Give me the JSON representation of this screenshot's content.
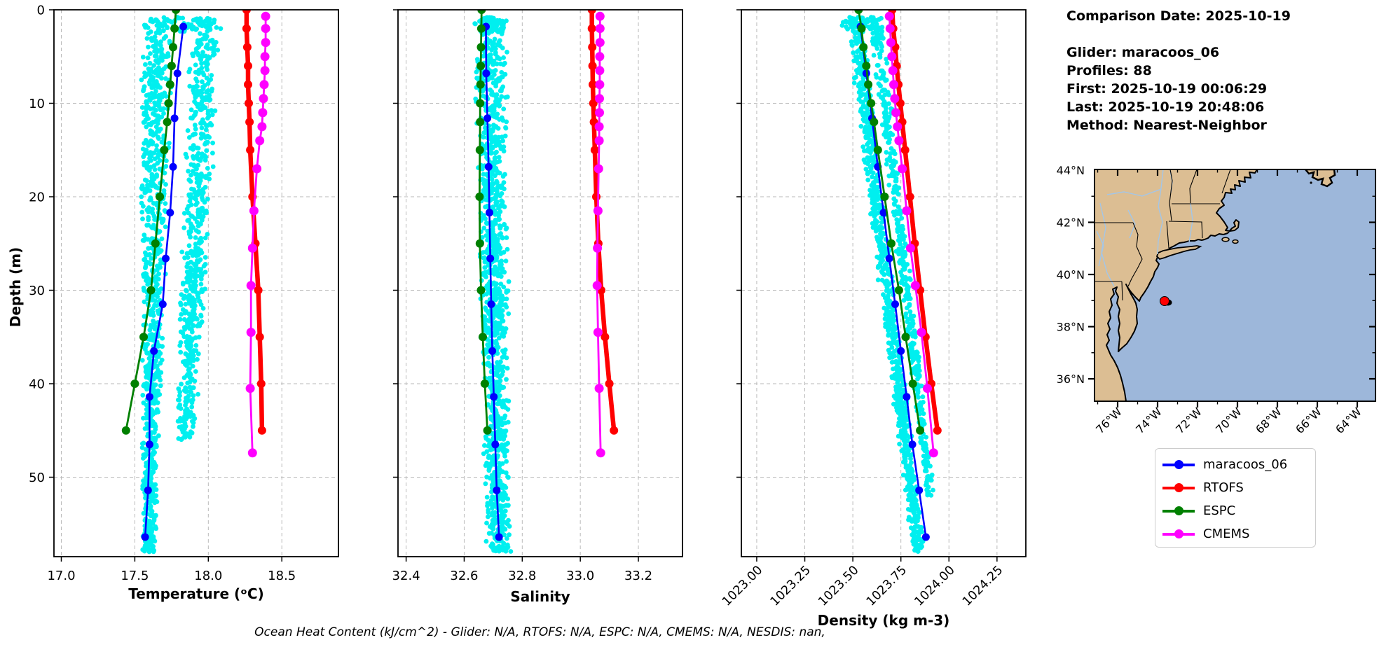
{
  "header": {
    "comparison_date": "Comparison Date: 2025-10-19",
    "glider": "Glider: maracoos_06",
    "profiles": "Profiles: 88",
    "first": "First: 2025-10-19 00:06:29",
    "last": "Last: 2025-10-19 20:48:06",
    "method": "Method: Nearest-Neighbor"
  },
  "caption": "Ocean Heat Content (kJ/cm^2) - Glider: N/A,  RTOFS: N/A,  ESPC: N/A,  CMEMS: N/A,  NESDIS: nan,",
  "legend": {
    "items": [
      {
        "label": "maracoos_06",
        "color": "#0000ff"
      },
      {
        "label": "RTOFS",
        "color": "#ff0000"
      },
      {
        "label": "ESPC",
        "color": "#008000"
      },
      {
        "label": "CMEMS",
        "color": "#ff00ff"
      }
    ]
  },
  "map": {
    "lat_tick_labels": [
      "44°N",
      "42°N",
      "40°N",
      "38°N",
      "36°N"
    ],
    "lon_tick_labels": [
      "76°W",
      "74°W",
      "72°W",
      "70°W",
      "68°W",
      "66°W",
      "64°W"
    ],
    "marker": {
      "lon_w": 73.6,
      "lat_n": 38.95,
      "color": "#ff0000"
    },
    "land_color": "#dcbe93",
    "ocean_color": "#9db7da",
    "river_color": "#a3c6e8",
    "foreign_land_color": "#b3b3b3"
  },
  "chart_data": [
    {
      "type": "scatter",
      "title": "",
      "xlabel": "Temperature (ᵒC)",
      "ylabel": "Depth (m)",
      "xlim": [
        16.95,
        18.885
      ],
      "ylim": [
        0,
        58.5
      ],
      "y_inverted": true,
      "grid": true,
      "xticks": [
        17.0,
        17.5,
        18.0,
        18.5
      ],
      "xtick_labels": [
        "17.0",
        "17.5",
        "18.0",
        "18.5"
      ],
      "rotate_xtick_labels": false,
      "ytick_values": [
        0,
        10,
        20,
        30,
        40,
        50
      ],
      "ytick_labels": [
        "0",
        "10",
        "20",
        "30",
        "40",
        "50"
      ],
      "series": [
        {
          "name": "maracoos_06",
          "color": "#0000ff",
          "lw": 2.6,
          "marker_r": 5.5,
          "depths": [
            1.8,
            6.8,
            11.6,
            16.8,
            21.7,
            26.6,
            31.5,
            36.5,
            41.4,
            46.5,
            51.4,
            56.4
          ],
          "values": [
            17.83,
            17.79,
            17.77,
            17.76,
            17.74,
            17.71,
            17.69,
            17.63,
            17.6,
            17.6,
            17.59,
            17.57
          ]
        },
        {
          "name": "RTOFS",
          "color": "#ff0000",
          "lw": 6.5,
          "marker_r": 6,
          "depths": [
            0,
            2,
            4,
            6,
            8,
            10,
            12,
            15,
            20,
            25,
            30,
            35,
            40,
            45
          ],
          "values": [
            18.26,
            18.26,
            18.265,
            18.27,
            18.27,
            18.275,
            18.28,
            18.285,
            18.3,
            18.32,
            18.34,
            18.35,
            18.36,
            18.365
          ]
        },
        {
          "name": "ESPC",
          "color": "#008000",
          "lw": 2.8,
          "marker_r": 6,
          "depths": [
            0,
            2,
            4,
            6,
            8,
            10,
            12,
            15,
            20,
            25,
            30,
            35,
            40,
            45
          ],
          "values": [
            17.78,
            17.77,
            17.76,
            17.75,
            17.74,
            17.73,
            17.72,
            17.7,
            17.67,
            17.64,
            17.61,
            17.56,
            17.5,
            17.44
          ]
        },
        {
          "name": "CMEMS",
          "color": "#ff00ff",
          "lw": 2.8,
          "marker_r": 6.5,
          "depths": [
            0.7,
            2,
            3.5,
            5,
            6.5,
            8,
            9.5,
            11,
            12.5,
            14,
            17,
            21.5,
            25.5,
            29.5,
            34.5,
            40.5,
            47.4
          ],
          "values": [
            18.39,
            18.39,
            18.39,
            18.385,
            18.385,
            18.38,
            18.375,
            18.37,
            18.365,
            18.35,
            18.33,
            18.31,
            18.3,
            18.29,
            18.29,
            18.285,
            18.3
          ]
        }
      ],
      "glider_scatter": {
        "color": "#00efef",
        "dot_r": 3.4,
        "bands": [
          {
            "count": 900,
            "dmin": 0.8,
            "dmax": 58,
            "c0": 17.65,
            "cslope": -0.0009,
            "h0": 0.125,
            "hslope": -0.0013,
            "hmin": 0.045
          },
          {
            "count": 620,
            "dmin": 0.8,
            "dmax": 46,
            "c0": 17.99,
            "cslope": -0.0032,
            "h0": 0.115,
            "hslope": -0.0008,
            "hmin": 0.05
          },
          {
            "count": 55,
            "dmin": 0.8,
            "dmax": 2.4,
            "c0": 17.84,
            "cslope": 0,
            "h0": 0.27,
            "hslope": 0,
            "hmin": 0.05
          }
        ]
      }
    },
    {
      "type": "scatter",
      "title": "",
      "xlabel": "Salinity",
      "xlim": [
        32.372,
        33.352
      ],
      "ylim": [
        0,
        58.5
      ],
      "y_inverted": true,
      "grid": true,
      "xticks": [
        32.4,
        32.6,
        32.8,
        33.0,
        33.2
      ],
      "xtick_labels": [
        "32.4",
        "32.6",
        "32.8",
        "33.0",
        "33.2"
      ],
      "rotate_xtick_labels": false,
      "series": [
        {
          "name": "maracoos_06",
          "color": "#0000ff",
          "lw": 2.6,
          "marker_r": 5.5,
          "depths": [
            1.8,
            6.8,
            11.6,
            16.8,
            21.7,
            26.6,
            31.5,
            36.5,
            41.4,
            46.5,
            51.4,
            56.4
          ],
          "values": [
            32.675,
            32.676,
            32.68,
            32.684,
            32.687,
            32.69,
            32.693,
            32.697,
            32.702,
            32.707,
            32.712,
            32.72
          ]
        },
        {
          "name": "RTOFS",
          "color": "#ff0000",
          "lw": 6.5,
          "marker_r": 6,
          "depths": [
            0,
            2,
            4,
            6,
            8,
            10,
            12,
            15,
            20,
            25,
            30,
            35,
            40,
            45
          ],
          "values": [
            33.04,
            33.04,
            33.041,
            33.042,
            33.043,
            33.045,
            33.047,
            33.05,
            33.055,
            33.062,
            33.072,
            33.085,
            33.1,
            33.116
          ]
        },
        {
          "name": "ESPC",
          "color": "#008000",
          "lw": 2.8,
          "marker_r": 6,
          "depths": [
            0,
            2,
            4,
            6,
            8,
            10,
            12,
            15,
            20,
            25,
            30,
            35,
            40,
            45
          ],
          "values": [
            32.66,
            32.659,
            32.658,
            32.657,
            32.656,
            32.655,
            32.655,
            32.654,
            32.653,
            32.654,
            32.658,
            32.664,
            32.671,
            32.68
          ]
        },
        {
          "name": "CMEMS",
          "color": "#ff00ff",
          "lw": 2.8,
          "marker_r": 6.5,
          "depths": [
            0.7,
            2,
            3.5,
            5,
            6.5,
            8,
            9.5,
            11,
            12.5,
            14,
            17,
            21.5,
            25.5,
            29.5,
            34.5,
            40.5,
            47.4
          ],
          "values": [
            33.068,
            33.068,
            33.068,
            33.067,
            33.067,
            33.067,
            33.066,
            33.066,
            33.065,
            33.065,
            33.063,
            33.061,
            33.059,
            33.058,
            33.061,
            33.065,
            33.07
          ]
        }
      ],
      "glider_scatter": {
        "color": "#00efef",
        "dot_r": 3.4,
        "bands": [
          {
            "count": 1150,
            "dmin": 0.8,
            "dmax": 58,
            "c0": 32.688,
            "cslope": 0.0005,
            "h0": 0.062,
            "hslope": -0.0003,
            "hmin": 0.028
          },
          {
            "count": 45,
            "dmin": 0.8,
            "dmax": 2.4,
            "c0": 32.7,
            "cslope": 0,
            "h0": 0.06,
            "hslope": 0,
            "hmin": 0.02
          }
        ]
      }
    },
    {
      "type": "scatter",
      "title": "",
      "xlabel": "Density (kg m-3)",
      "xlim": [
        1022.92,
        1024.4
      ],
      "ylim": [
        0,
        58.5
      ],
      "y_inverted": true,
      "grid": true,
      "xticks": [
        1023.0,
        1023.25,
        1023.5,
        1023.75,
        1024.0,
        1024.25
      ],
      "xtick_labels": [
        "1023.00",
        "1023.25",
        "1023.50",
        "1023.75",
        "1024.00",
        "1024.25"
      ],
      "rotate_xtick_labels": true,
      "series": [
        {
          "name": "maracoos_06",
          "color": "#0000ff",
          "lw": 2.6,
          "marker_r": 5.5,
          "depths": [
            1.8,
            6.8,
            11.6,
            16.8,
            21.7,
            26.6,
            31.5,
            36.5,
            41.4,
            46.5,
            51.4,
            56.4
          ],
          "values": [
            1023.54,
            1023.57,
            1023.6,
            1023.63,
            1023.66,
            1023.69,
            1023.72,
            1023.75,
            1023.78,
            1023.81,
            1023.845,
            1023.88
          ]
        },
        {
          "name": "RTOFS",
          "color": "#ff0000",
          "lw": 6.5,
          "marker_r": 6,
          "depths": [
            0,
            2,
            4,
            6,
            8,
            10,
            12,
            15,
            20,
            25,
            30,
            35,
            40,
            45
          ],
          "values": [
            1023.705,
            1023.71,
            1023.72,
            1023.728,
            1023.737,
            1023.747,
            1023.757,
            1023.772,
            1023.797,
            1023.822,
            1023.85,
            1023.878,
            1023.908,
            1023.94
          ]
        },
        {
          "name": "ESPC",
          "color": "#008000",
          "lw": 2.8,
          "marker_r": 6,
          "depths": [
            0,
            2,
            4,
            6,
            8,
            10,
            12,
            15,
            20,
            25,
            30,
            35,
            40,
            45
          ],
          "values": [
            1023.53,
            1023.545,
            1023.555,
            1023.57,
            1023.58,
            1023.595,
            1023.61,
            1023.63,
            1023.665,
            1023.7,
            1023.74,
            1023.775,
            1023.812,
            1023.85
          ]
        },
        {
          "name": "CMEMS",
          "color": "#ff00ff",
          "lw": 2.8,
          "marker_r": 6.5,
          "depths": [
            0.7,
            2,
            3.5,
            5,
            6.5,
            8,
            9.5,
            11,
            12.5,
            14,
            17,
            21.5,
            25.5,
            29.5,
            34.5,
            40.5,
            47.4
          ],
          "values": [
            1023.69,
            1023.694,
            1023.698,
            1023.703,
            1023.708,
            1023.713,
            1023.718,
            1023.724,
            1023.732,
            1023.74,
            1023.757,
            1023.78,
            1023.8,
            1023.825,
            1023.857,
            1023.888,
            1023.92
          ]
        }
      ],
      "glider_scatter": {
        "color": "#00efef",
        "dot_r": 3.4,
        "bands": [
          {
            "count": 800,
            "dmin": 0.8,
            "dmax": 58,
            "c0": 1023.5,
            "cslope": 0.0059,
            "h0": 0.048,
            "hslope": -0.0002,
            "hmin": 0.03
          },
          {
            "count": 430,
            "dmin": 1.5,
            "dmax": 52,
            "c0": 1023.612,
            "cslope": 0.0056,
            "h0": 0.04,
            "hslope": -0.0003,
            "hmin": 0.022
          },
          {
            "count": 50,
            "dmin": 0.8,
            "dmax": 2.4,
            "c0": 1023.55,
            "cslope": 0,
            "h0": 0.12,
            "hslope": 0,
            "hmin": 0.02
          }
        ]
      }
    }
  ]
}
